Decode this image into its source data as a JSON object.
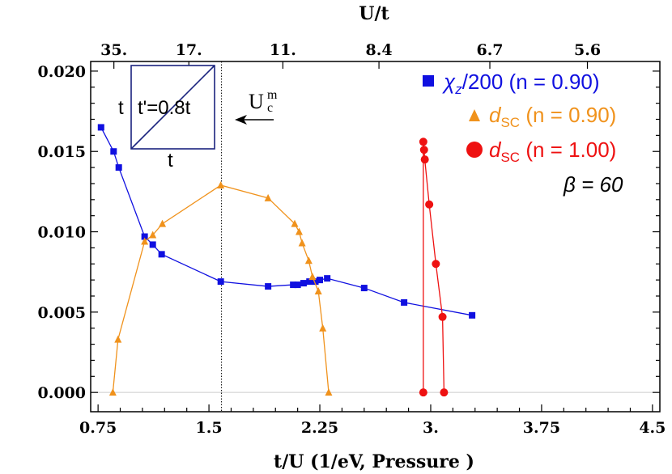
{
  "chart_data": {
    "type": "line",
    "xlabel": "t/U (1/eV, Pressure  )",
    "top_axis_label": "U/t",
    "xlim": [
      0.7,
      4.55
    ],
    "ylim": [
      -0.0012,
      0.0206
    ],
    "x_ticks": [
      {
        "value": 0.75,
        "label": "0.75"
      },
      {
        "value": 1.5,
        "label": "1.5"
      },
      {
        "value": 2.25,
        "label": "2.25"
      },
      {
        "value": 3.0,
        "label": "3."
      },
      {
        "value": 3.75,
        "label": "3.75"
      },
      {
        "value": 4.5,
        "label": "4.5"
      }
    ],
    "y_ticks": [
      {
        "value": 0.0,
        "label": "0.000"
      },
      {
        "value": 0.005,
        "label": "0.005"
      },
      {
        "value": 0.01,
        "label": "0.010"
      },
      {
        "value": 0.015,
        "label": "0.015"
      },
      {
        "value": 0.02,
        "label": "0.020"
      }
    ],
    "top_ticks": [
      {
        "value": 0.857,
        "label": "35."
      },
      {
        "value": 1.364,
        "label": "17."
      },
      {
        "value": 2.0,
        "label": "11."
      },
      {
        "value": 2.65,
        "label": "8.4"
      },
      {
        "value": 3.4,
        "label": "6.7"
      },
      {
        "value": 4.06,
        "label": "5.6"
      }
    ],
    "vline_x": 1.585,
    "series": [
      {
        "name": "χz/200 (n = 0.90)",
        "legend_main": "χ",
        "legend_sub": "z",
        "legend_rest": "/200 (n = 0.90)",
        "color": "#1010e0",
        "marker": "square",
        "points": [
          [
            0.77,
            0.0165
          ],
          [
            0.855,
            0.015
          ],
          [
            0.89,
            0.014
          ],
          [
            1.065,
            0.0097
          ],
          [
            1.12,
            0.0092
          ],
          [
            1.18,
            0.0086
          ],
          [
            1.58,
            0.0069
          ],
          [
            1.9,
            0.0066
          ],
          [
            2.07,
            0.0067
          ],
          [
            2.1,
            0.0067
          ],
          [
            2.14,
            0.0068
          ],
          [
            2.18,
            0.0069
          ],
          [
            2.22,
            0.0069
          ],
          [
            2.25,
            0.007
          ],
          [
            2.3,
            0.0071
          ],
          [
            2.55,
            0.0065
          ],
          [
            2.82,
            0.0056
          ],
          [
            3.28,
            0.0048
          ]
        ]
      },
      {
        "name": "dSC (n = 0.90)",
        "legend_main": "d",
        "legend_sub": "SC",
        "legend_rest": " (n = 0.90)",
        "color": "#f0921c",
        "marker": "triangle",
        "points": [
          [
            0.85,
            0.0
          ],
          [
            0.885,
            0.0033
          ],
          [
            1.065,
            0.0094
          ],
          [
            1.12,
            0.0098
          ],
          [
            1.185,
            0.0105
          ],
          [
            1.58,
            0.0129
          ],
          [
            1.9,
            0.0121
          ],
          [
            2.08,
            0.0105
          ],
          [
            2.11,
            0.01
          ],
          [
            2.13,
            0.0093
          ],
          [
            2.175,
            0.0082
          ],
          [
            2.2,
            0.0072
          ],
          [
            2.24,
            0.0063
          ],
          [
            2.27,
            0.004
          ],
          [
            2.31,
            0.0
          ]
        ]
      },
      {
        "name": "dSC (n = 1.00)",
        "legend_main": "d",
        "legend_sub": "SC",
        "legend_rest": " (n = 1.00)",
        "color": "#ee1111",
        "marker": "circle",
        "points": [
          [
            2.95,
            0.0
          ],
          [
            2.95,
            0.0156
          ],
          [
            2.955,
            0.0151
          ],
          [
            2.96,
            0.0145
          ],
          [
            2.99,
            0.0117
          ],
          [
            3.035,
            0.008
          ],
          [
            3.08,
            0.0047
          ],
          [
            3.09,
            0.0
          ]
        ]
      }
    ],
    "annotations": {
      "beta_label": "β = 60",
      "uc_main": "U",
      "uc_sup": "m",
      "uc_sub": "c",
      "inset_left": "t",
      "inset_diag": "t'=0.8t",
      "inset_bottom": "t"
    }
  }
}
